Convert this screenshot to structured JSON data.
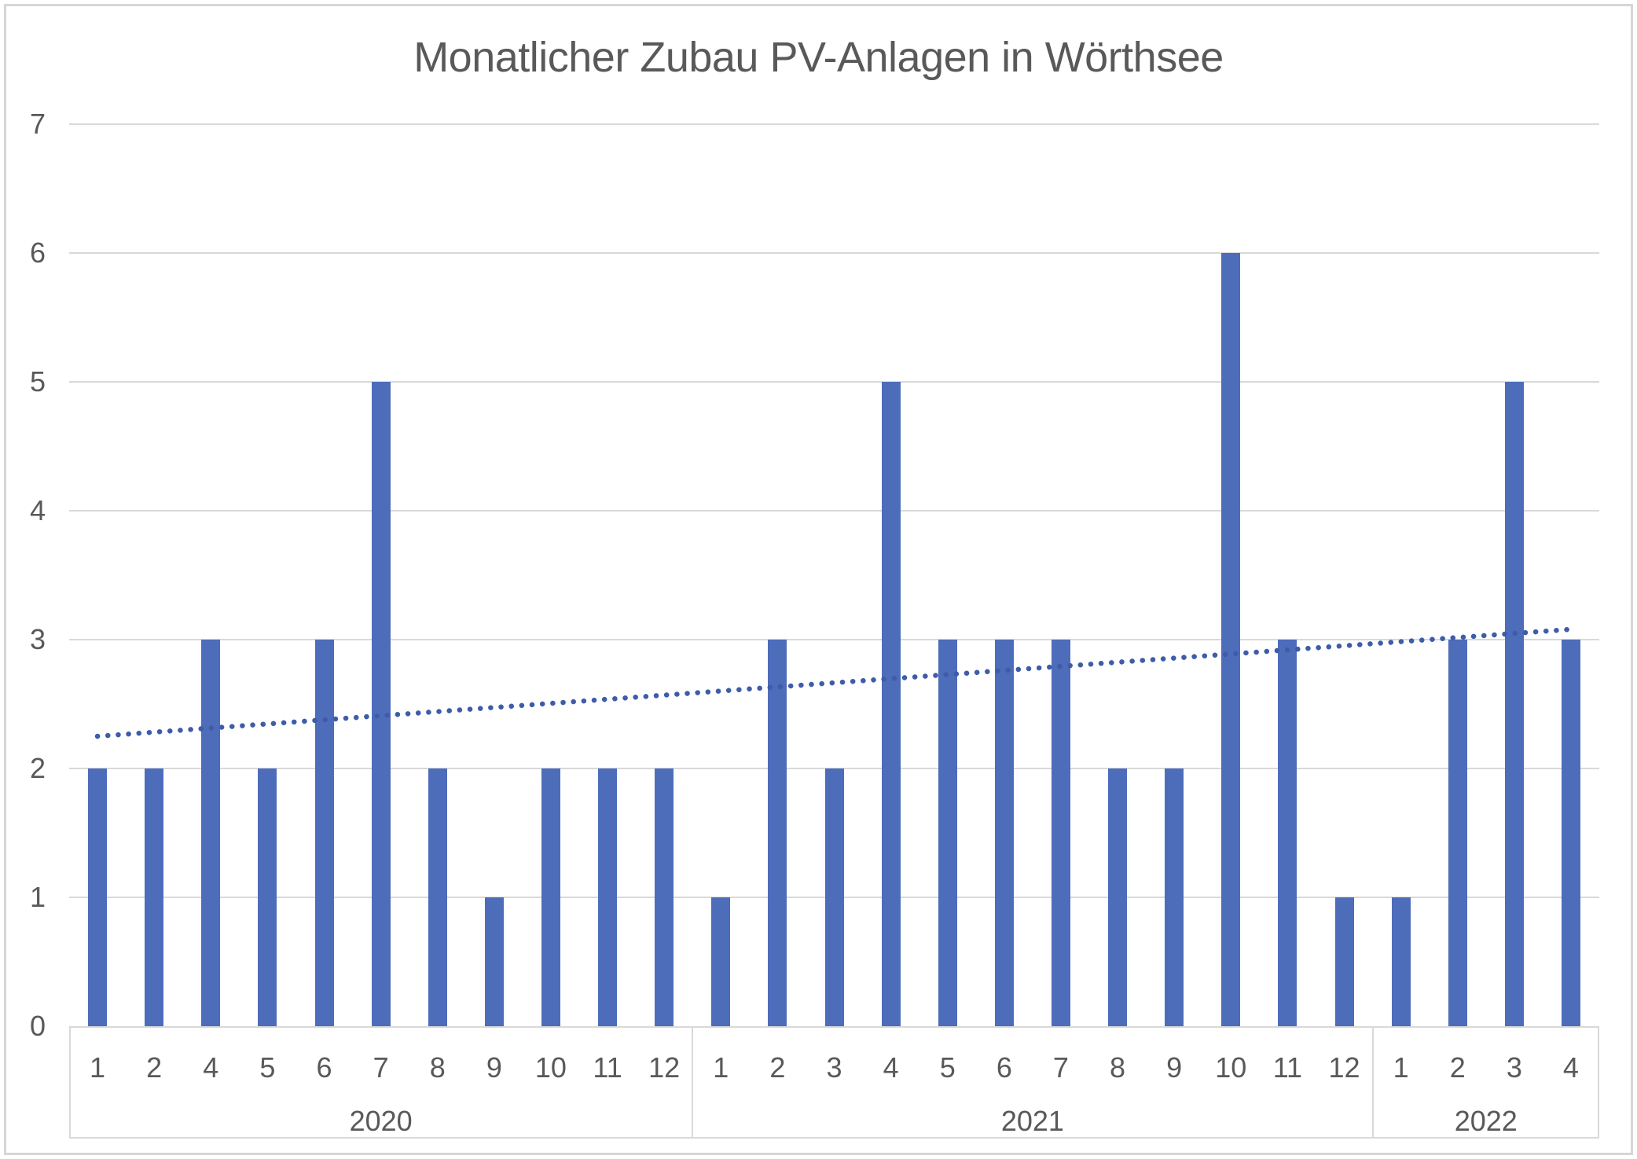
{
  "chart_data": {
    "type": "bar",
    "title": "Monatlicher Zubau PV-Anlagen in Wörthsee",
    "xlabel": "",
    "ylabel": "",
    "ylim": [
      0,
      7
    ],
    "y_ticks": [
      "0",
      "1",
      "2",
      "3",
      "4",
      "5",
      "6",
      "7"
    ],
    "grid": true,
    "legend": false,
    "bar_color": "#4d6dbb",
    "trend_color": "#3e5ca8",
    "groups": [
      {
        "year": "2020",
        "categories": [
          "1",
          "2",
          "4",
          "5",
          "6",
          "7",
          "8",
          "9",
          "10",
          "11",
          "12"
        ],
        "values": [
          2,
          2,
          3,
          2,
          3,
          5,
          2,
          1,
          2,
          2,
          2
        ]
      },
      {
        "year": "2021",
        "categories": [
          "1",
          "2",
          "3",
          "4",
          "5",
          "6",
          "7",
          "8",
          "9",
          "10",
          "11",
          "12"
        ],
        "values": [
          1,
          3,
          2,
          5,
          3,
          3,
          3,
          2,
          2,
          6,
          3,
          1
        ]
      },
      {
        "year": "2022",
        "categories": [
          "1",
          "2",
          "3",
          "4"
        ],
        "values": [
          1,
          3,
          5,
          3
        ]
      }
    ],
    "trendline": {
      "type": "linear",
      "style": "dotted",
      "start_value": 2.25,
      "end_value": 3.08
    }
  },
  "colors": {
    "text": "#595959",
    "grid": "#d9d9d9",
    "frame_border": "#d6d6d6",
    "background": "#ffffff"
  }
}
